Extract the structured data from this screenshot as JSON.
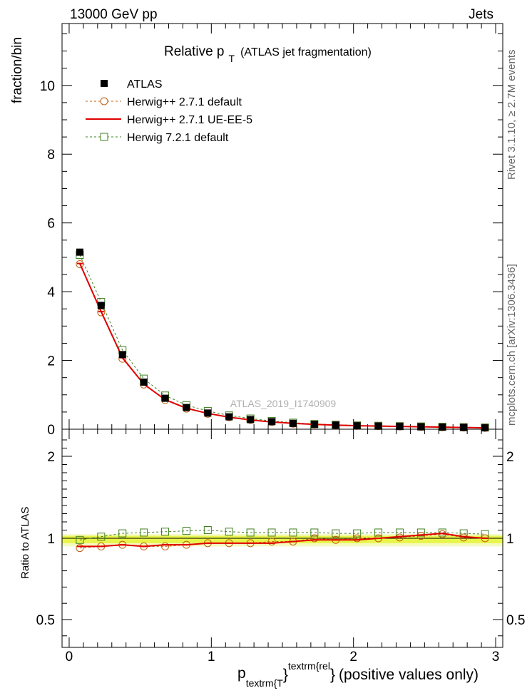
{
  "header": {
    "left": "13000 GeV pp",
    "right": "Jets"
  },
  "side_labels": {
    "top": "Rivet 3.1.10, ≥ 2.7M events",
    "bottom": "mcplots.cern.ch [arXiv:1306.3436]"
  },
  "watermark": "ATLAS_2019_I1740909",
  "chart_data": [
    {
      "type": "line",
      "panel": "main",
      "title": "Relative p_T (ATLAS jet fragmentation)",
      "title_parts": {
        "main": "Relative p",
        "sub": "T",
        "rest": "(ATLAS jet fragmentation)"
      },
      "ylabel": "fraction/bin",
      "xlim": [
        -0.05,
        3.05
      ],
      "ylim": [
        0,
        11.8
      ],
      "yticks": [
        0,
        2,
        4,
        6,
        8,
        10
      ],
      "ytick_labels": [
        "0",
        "2",
        "4",
        "6",
        "8",
        "10"
      ],
      "legend": {
        "position": "top-left",
        "entries": [
          "ATLAS",
          "Herwig++ 2.7.1 default",
          "Herwig++ 2.7.1 UE-EE-5",
          "Herwig 7.2.1 default"
        ]
      },
      "x": [
        0.075,
        0.225,
        0.375,
        0.525,
        0.675,
        0.825,
        0.975,
        1.125,
        1.275,
        1.425,
        1.575,
        1.725,
        1.875,
        2.025,
        2.175,
        2.325,
        2.475,
        2.625,
        2.775,
        2.925
      ],
      "series": [
        {
          "name": "ATLAS",
          "color": "#000000",
          "marker": "filled-square",
          "values": [
            5.15,
            3.6,
            2.17,
            1.37,
            0.9,
            0.63,
            0.47,
            0.36,
            0.28,
            0.22,
            0.17,
            0.14,
            0.12,
            0.1,
            0.09,
            0.08,
            0.07,
            0.06,
            0.05,
            0.04
          ]
        },
        {
          "name": "Herwig++ 2.7.1 default",
          "color": "#c06010",
          "marker": "open-circle",
          "line": "dashed",
          "values": [
            4.8,
            3.4,
            2.05,
            1.3,
            0.85,
            0.6,
            0.45,
            0.35,
            0.27,
            0.21,
            0.16,
            0.14,
            0.12,
            0.1,
            0.09,
            0.08,
            0.07,
            0.06,
            0.05,
            0.04
          ]
        },
        {
          "name": "Herwig++ 2.7.1 UE-EE-5",
          "color": "#e00000",
          "marker": "none",
          "line": "solid",
          "values": [
            4.82,
            3.42,
            2.08,
            1.31,
            0.86,
            0.61,
            0.46,
            0.35,
            0.27,
            0.21,
            0.17,
            0.14,
            0.12,
            0.1,
            0.09,
            0.08,
            0.07,
            0.06,
            0.05,
            0.04
          ]
        },
        {
          "name": "Herwig 7.2.1 default",
          "color": "#408020",
          "marker": "open-square",
          "line": "dashed",
          "values": [
            5.07,
            3.7,
            2.3,
            1.47,
            0.98,
            0.7,
            0.53,
            0.4,
            0.31,
            0.24,
            0.19,
            0.15,
            0.13,
            0.11,
            0.1,
            0.09,
            0.08,
            0.07,
            0.06,
            0.05
          ]
        }
      ]
    },
    {
      "type": "line",
      "panel": "ratio",
      "ylabel": "Ratio to ATLAS",
      "xlabel": "p_{textrm{T}}^{textrm{rel}} (positive values only)",
      "xlabel_parts": {
        "main": "p",
        "sub": "textrm{T",
        "sup_open": "}",
        "sup": "textrm{rel",
        "close": "}",
        "rest": "(positive values only)"
      },
      "xlim": [
        -0.05,
        3.05
      ],
      "ylim": [
        0.35,
        2.35
      ],
      "xticks": [
        0,
        1,
        2,
        3
      ],
      "xtick_labels": [
        "0",
        "1",
        "2",
        "3"
      ],
      "yticks": [
        0.5,
        1,
        2
      ],
      "ytick_labels": [
        "0.5",
        "1",
        "2"
      ],
      "band": {
        "inner": [
          0.97,
          1.03
        ],
        "outer": [
          0.95,
          1.05
        ],
        "inner_color": "#e8f54a",
        "outer_color": "#f4fac0"
      },
      "x": [
        0.075,
        0.225,
        0.375,
        0.525,
        0.675,
        0.825,
        0.975,
        1.125,
        1.275,
        1.425,
        1.575,
        1.725,
        1.875,
        2.025,
        2.175,
        2.325,
        2.475,
        2.625,
        2.775,
        2.925
      ],
      "series": [
        {
          "name": "Herwig++ 2.7.1 default",
          "color": "#c06010",
          "marker": "open-circle",
          "line": "dashed",
          "values": [
            0.94,
            0.95,
            0.96,
            0.95,
            0.95,
            0.96,
            0.97,
            0.97,
            0.97,
            0.98,
            0.98,
            1.0,
            0.99,
            1.0,
            1.0,
            1.01,
            1.03,
            1.05,
            1.01,
            1.0
          ]
        },
        {
          "name": "Herwig++ 2.7.1 UE-EE-5",
          "color": "#e00000",
          "marker": "none",
          "line": "solid",
          "values": [
            0.95,
            0.95,
            0.96,
            0.95,
            0.96,
            0.96,
            0.97,
            0.97,
            0.97,
            0.97,
            0.98,
            0.99,
            0.99,
            0.99,
            1.0,
            1.02,
            1.04,
            1.06,
            1.02,
            1.0
          ]
        },
        {
          "name": "Herwig 7.2.1 default",
          "color": "#408020",
          "marker": "open-square",
          "line": "dashed",
          "values": [
            0.99,
            1.02,
            1.06,
            1.07,
            1.08,
            1.09,
            1.1,
            1.08,
            1.07,
            1.07,
            1.07,
            1.07,
            1.06,
            1.06,
            1.07,
            1.07,
            1.07,
            1.07,
            1.06,
            1.05
          ]
        }
      ]
    }
  ]
}
